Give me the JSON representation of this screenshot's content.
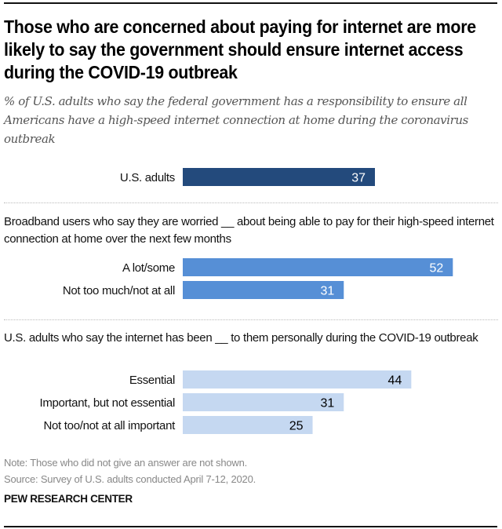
{
  "title": "Those who are concerned about paying for internet are more likely to say the government should ensure internet access during the COVID-19 outbreak",
  "subtitle": "% of U.S. adults who say the federal government has a responsibility to ensure all Americans have a high-speed internet connection at home during the coronavirus outbreak",
  "note": "Note: Those who did not give an answer are not shown.",
  "source": "Source: Survey of U.S. adults conducted April 7-12, 2020.",
  "brand": "PEW RESEARCH CENTER",
  "colors": {
    "dark": "#234a7c",
    "medium": "#568fd6",
    "light": "#c5d8f1",
    "label_on_dark": "#ffffff",
    "label_on_light": "#000000"
  },
  "chart_data": {
    "type": "bar",
    "orientation": "horizontal",
    "title": "Those who are concerned about paying for internet are more likely to say the government should ensure internet access during the COVID-19 outbreak",
    "xlabel": "",
    "ylabel": "",
    "xlim": [
      0,
      100
    ],
    "grid": false,
    "groups": [
      {
        "label": "",
        "color_key": "dark",
        "categories": [
          "U.S. adults"
        ],
        "values": [
          37
        ]
      },
      {
        "label": "Broadband users who say they are worried __ about being able to pay for their high-speed internet connection at home over the next few months",
        "color_key": "medium",
        "categories": [
          "A lot/some",
          "Not too much/not at all"
        ],
        "values": [
          52,
          31
        ]
      },
      {
        "label": "U.S. adults who say the internet has been __ to them personally during the COVID-19 outbreak",
        "color_key": "light",
        "categories": [
          "Essential",
          "Important, but not essential",
          "Not too/not at all important"
        ],
        "values": [
          44,
          31,
          25
        ]
      }
    ]
  }
}
